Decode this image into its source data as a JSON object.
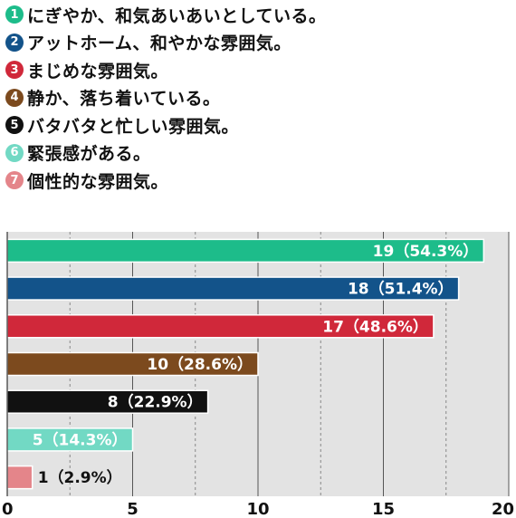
{
  "legend": [
    {
      "num": "1",
      "label": "にぎやか、和気あいあいとしている。",
      "color": "#1dbc8a"
    },
    {
      "num": "2",
      "label": "アットホーム、和やかな雰囲気。",
      "color": "#13538a"
    },
    {
      "num": "3",
      "label": "まじめな雰囲気。",
      "color": "#d0283a"
    },
    {
      "num": "4",
      "label": "静か、落ち着いている。",
      "color": "#7c4a1e"
    },
    {
      "num": "5",
      "label": "バタバタと忙しい雰囲気。",
      "color": "#111111"
    },
    {
      "num": "6",
      "label": "緊張感がある。",
      "color": "#72d9c4"
    },
    {
      "num": "7",
      "label": "個性的な雰囲気。",
      "color": "#e4858a"
    }
  ],
  "chart_data": {
    "type": "bar",
    "orientation": "horizontal",
    "values": [
      19,
      18,
      17,
      10,
      8,
      5,
      1
    ],
    "data_labels": [
      "19（54.3%）",
      "18（51.4%）",
      "17（48.6%）",
      "10（28.6%）",
      "8（22.9%）",
      "5（14.3%）",
      "1（2.9%）"
    ],
    "colors": [
      "#1dbc8a",
      "#13538a",
      "#d0283a",
      "#7c4a1e",
      "#111111",
      "#72d9c4",
      "#e4858a"
    ],
    "xlim": [
      0,
      20
    ],
    "x_ticks": [
      "0",
      "5",
      "10",
      "15",
      "20"
    ],
    "grid": true
  }
}
